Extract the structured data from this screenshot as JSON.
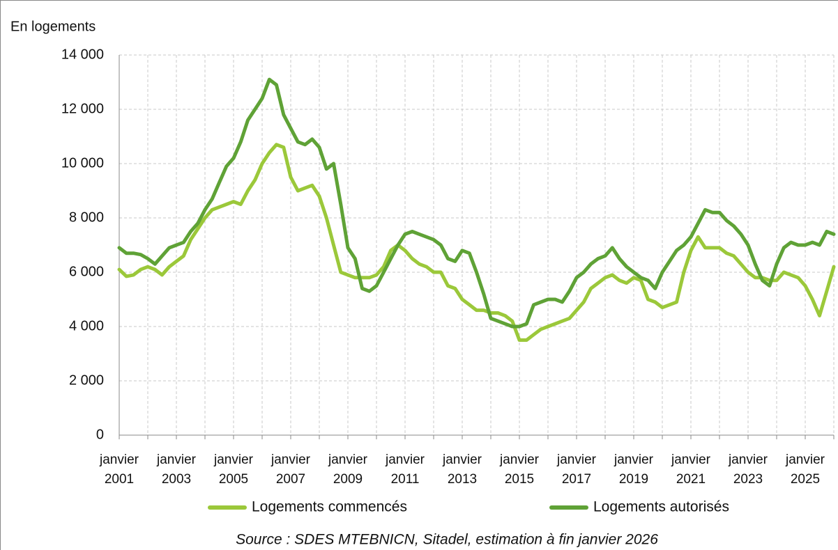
{
  "chart_data": {
    "type": "line",
    "unit_label": "En logements",
    "source": "Source : SDES MTEBNICN, Sitadel, estimation à fin janvier 2026",
    "legend": "bottom",
    "grid": true,
    "categories": [
      "janvier 2001",
      null,
      null,
      null,
      null,
      null,
      null,
      null,
      "janvier 2003",
      null,
      null,
      null,
      null,
      null,
      null,
      null,
      "janvier 2005",
      null,
      null,
      null,
      null,
      null,
      null,
      null,
      "janvier 2007",
      null,
      null,
      null,
      null,
      null,
      null,
      null,
      "janvier 2009",
      null,
      null,
      null,
      null,
      null,
      null,
      null,
      "janvier 2011",
      null,
      null,
      null,
      null,
      null,
      null,
      null,
      "janvier 2013",
      null,
      null,
      null,
      null,
      null,
      null,
      null,
      "janvier 2015",
      null,
      null,
      null,
      null,
      null,
      null,
      null,
      "janvier 2017",
      null,
      null,
      null,
      null,
      null,
      null,
      null,
      "janvier 2019",
      null,
      null,
      null,
      null,
      null,
      null,
      null,
      "janvier 2021",
      null,
      null,
      null,
      null,
      null,
      null,
      null,
      "janvier 2023",
      null,
      null,
      null,
      null,
      null,
      null,
      null,
      "janvier 2025",
      null,
      null,
      null,
      null
    ],
    "ylim": [
      0,
      14000
    ],
    "yticks": [
      0,
      {
        "value": 2000,
        "label": "2 000"
      },
      {
        "value": 4000,
        "label": "4 000"
      },
      {
        "value": 6000,
        "label": "6 000"
      },
      {
        "value": 8000,
        "label": "8 000"
      },
      {
        "value": 10000,
        "label": "10 000"
      },
      {
        "value": 12000,
        "label": "12 000"
      },
      {
        "value": 14000,
        "label": "14 000"
      }
    ],
    "series": [
      {
        "name": "Logements commencés",
        "color": "#9bc83a",
        "values": [
          6100,
          5850,
          5900,
          6100,
          6200,
          6100,
          5900,
          6200,
          6400,
          6600,
          7200,
          7600,
          8000,
          8300,
          8400,
          8500,
          8600,
          8500,
          9000,
          9400,
          10000,
          10400,
          10700,
          10600,
          9500,
          9000,
          9100,
          9200,
          8800,
          8000,
          7000,
          6000,
          5900,
          5800,
          5800,
          5800,
          5900,
          6200,
          6800,
          7000,
          6800,
          6500,
          6300,
          6200,
          6000,
          6000,
          5500,
          5400,
          5000,
          4800,
          4600,
          4600,
          4500,
          4500,
          4400,
          4200,
          3500,
          3500,
          3700,
          3900,
          4000,
          4100,
          4200,
          4300,
          4600,
          4900,
          5400,
          5600,
          5800,
          5900,
          5700,
          5600,
          5800,
          5700,
          5000,
          4900,
          4700,
          4800,
          4900,
          6000,
          6800,
          7300,
          6900,
          6900,
          6900,
          6700,
          6600,
          6300,
          6000,
          5800,
          5800,
          5700,
          5700,
          6000,
          5900,
          5800,
          5500,
          5000,
          4400,
          5300,
          6200
        ]
      },
      {
        "name": "Logements autorisés",
        "color": "#5fa236",
        "values": [
          6900,
          6700,
          6700,
          6650,
          6500,
          6300,
          6600,
          6900,
          7000,
          7100,
          7500,
          7800,
          8300,
          8700,
          9300,
          9900,
          10200,
          10800,
          11600,
          12000,
          12400,
          13100,
          12900,
          11800,
          11300,
          10800,
          10700,
          10900,
          10600,
          9800,
          10000,
          8500,
          6900,
          6500,
          5400,
          5300,
          5500,
          6000,
          6500,
          7000,
          7400,
          7500,
          7400,
          7300,
          7200,
          7000,
          6500,
          6400,
          6800,
          6700,
          6000,
          5200,
          4300,
          4200,
          4100,
          4000,
          4000,
          4100,
          4800,
          4900,
          5000,
          5000,
          4900,
          5300,
          5800,
          6000,
          6300,
          6500,
          6600,
          6900,
          6500,
          6200,
          6000,
          5800,
          5700,
          5400,
          6000,
          6400,
          6800,
          7000,
          7300,
          7800,
          8300,
          8200,
          8200,
          7900,
          7700,
          7400,
          7000,
          6300,
          5700,
          5500,
          6300,
          6900,
          7100,
          7000,
          7000,
          7100,
          7000,
          7500,
          7400
        ]
      }
    ]
  }
}
